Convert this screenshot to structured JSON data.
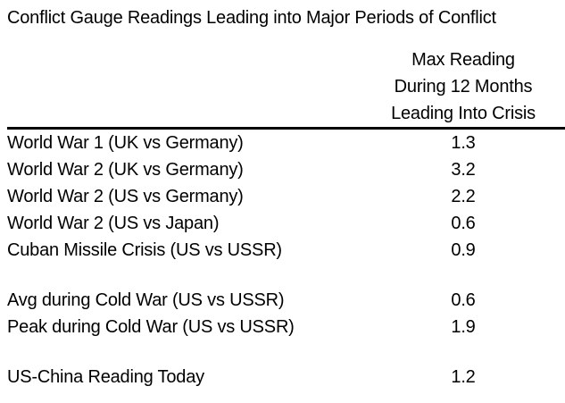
{
  "colors": {
    "background": "#ffffff",
    "text": "#000000",
    "rule": "#000000"
  },
  "chart_data": {
    "type": "table",
    "title": "Conflict Gauge Readings Leading into Major Periods of Conflict",
    "value_header_lines": [
      "Max Reading",
      "During 12 Months",
      "Leading Into Crisis"
    ],
    "value_column_header": "Max Reading During 12 Months Leading Into Crisis",
    "groups": [
      {
        "rows": [
          {
            "label": "World War 1 (UK vs Germany)",
            "value": "1.3"
          },
          {
            "label": "World War 2 (UK vs Germany)",
            "value": "3.2"
          },
          {
            "label": "World War 2 (US vs Germany)",
            "value": "2.2"
          },
          {
            "label": "World War 2 (US vs Japan)",
            "value": "0.6"
          },
          {
            "label": "Cuban Missile Crisis (US vs USSR)",
            "value": "0.9"
          }
        ]
      },
      {
        "rows": [
          {
            "label": "Avg during Cold War (US vs USSR)",
            "value": "0.6"
          },
          {
            "label": "Peak during Cold War (US vs USSR)",
            "value": "1.9"
          }
        ]
      },
      {
        "rows": [
          {
            "label": "US-China Reading Today",
            "value": "1.2"
          }
        ]
      }
    ]
  }
}
